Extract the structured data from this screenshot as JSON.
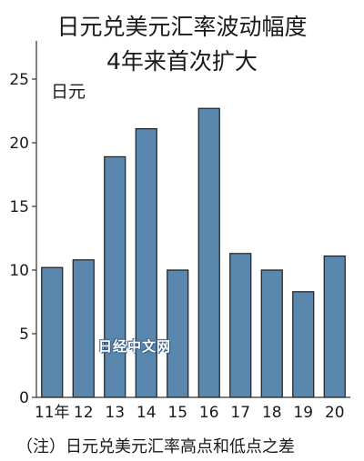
{
  "chart_data": {
    "type": "bar",
    "title_lines": [
      "日元兑美元汇率波动幅度",
      "4年来首次扩大"
    ],
    "ylabel": "日元",
    "xlabel": "",
    "categories": [
      "11年",
      "12",
      "13",
      "14",
      "15",
      "16",
      "17",
      "18",
      "19",
      "20"
    ],
    "values": [
      10.2,
      10.8,
      18.9,
      21.1,
      10.0,
      22.7,
      11.3,
      10.0,
      8.3,
      11.1
    ],
    "ylim": [
      0,
      28
    ],
    "yticks": [
      "0",
      "5",
      "10",
      "15",
      "20",
      "25"
    ],
    "grid": false,
    "legend": "none",
    "note": "（注）日元兑美元汇率高点和低点之差",
    "watermark": "日经中文网",
    "colors": {
      "bar": "#5a87ad",
      "bar_outline": "#1f1f1f",
      "axis": "#333333"
    }
  }
}
